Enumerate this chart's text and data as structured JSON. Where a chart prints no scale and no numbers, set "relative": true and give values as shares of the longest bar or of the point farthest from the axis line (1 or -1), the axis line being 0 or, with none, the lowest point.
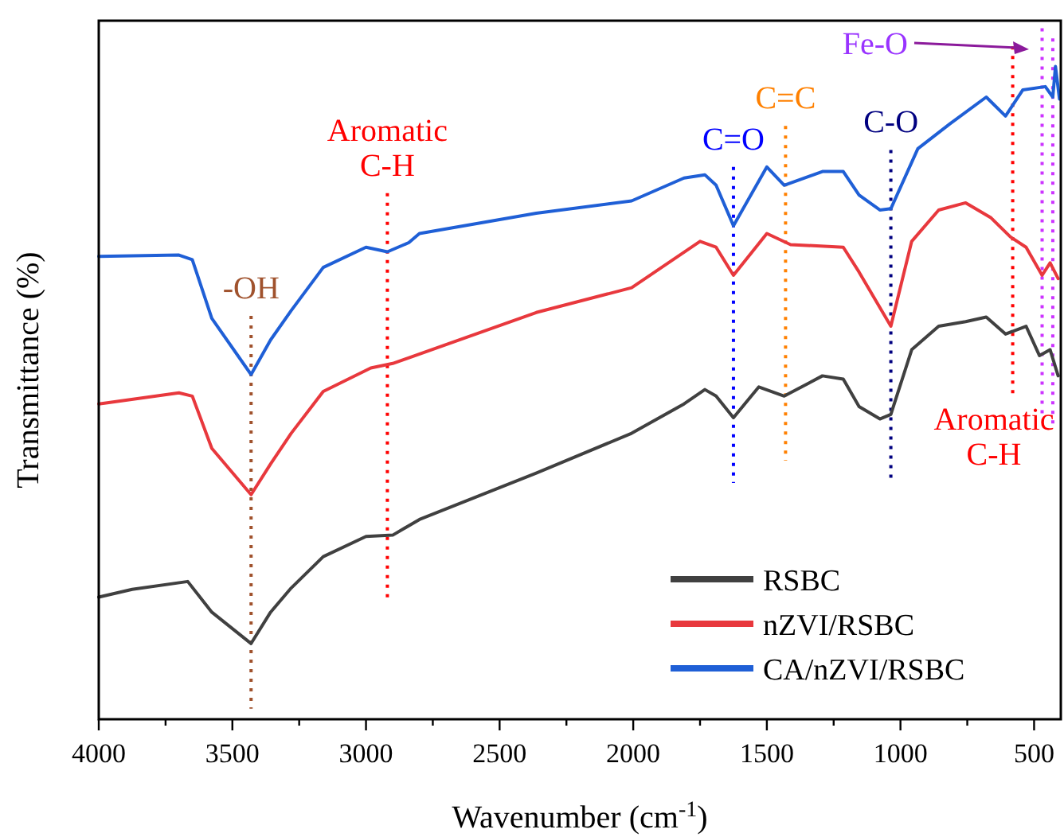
{
  "chart_data": {
    "type": "line",
    "relative": true,
    "xlabel": "Wavenumber (cm$^{-1}$)",
    "ylabel": "Transmittance (%)",
    "xlim": [
      4000,
      400
    ],
    "xticks": [
      4000,
      {
        "value": 3750,
        "label": null
      },
      3500,
      {
        "value": 3250,
        "label": null
      },
      3000,
      {
        "value": 2750,
        "label": null
      },
      2500,
      {
        "value": 2250,
        "label": null
      },
      2000,
      {
        "value": 1750,
        "label": null
      },
      1500,
      {
        "value": 1250,
        "label": null
      },
      1000,
      {
        "value": 750,
        "label": null
      },
      500
    ],
    "legend": "bottom right",
    "line_style": "solid",
    "series": [
      {
        "name": "RSBC",
        "color": "#404040",
        "x": [
          4000,
          3875,
          3667,
          3577,
          3430,
          3357,
          3280,
          3160,
          3000,
          2900,
          2800,
          2363,
          2006,
          1810,
          1732,
          1690,
          1625,
          1530,
          1435,
          1292,
          1214,
          1155,
          1077,
          1036,
          958,
          857,
          756,
          679,
          607,
          530,
          480,
          440,
          410
        ],
        "values": [
          0.187,
          0.199,
          0.211,
          0.164,
          0.116,
          0.164,
          0.201,
          0.249,
          0.28,
          0.282,
          0.306,
          0.377,
          0.438,
          0.483,
          0.505,
          0.495,
          0.462,
          0.509,
          0.495,
          0.526,
          0.521,
          0.479,
          0.46,
          0.467,
          0.566,
          0.602,
          0.609,
          0.616,
          0.59,
          0.602,
          0.557,
          0.566,
          0.526
        ]
      },
      {
        "name": "nZVI/RSBC",
        "color": "#e8383d",
        "x": [
          4000,
          3700,
          3650,
          3577,
          3430,
          3357,
          3280,
          3160,
          2982,
          2900,
          2363,
          2006,
          1750,
          1690,
          1625,
          1500,
          1411,
          1214,
          1155,
          1036,
          958,
          857,
          756,
          661,
          589,
          530,
          470,
          440,
          410
        ],
        "values": [
          0.483,
          0.5,
          0.495,
          0.415,
          0.344,
          0.391,
          0.438,
          0.502,
          0.538,
          0.545,
          0.623,
          0.661,
          0.732,
          0.723,
          0.68,
          0.744,
          0.727,
          0.723,
          0.685,
          0.602,
          0.732,
          0.78,
          0.791,
          0.768,
          0.739,
          0.723,
          0.68,
          0.699,
          0.675
        ]
      },
      {
        "name": "CA/nZVI/RSBC",
        "color": "#1f5fd6",
        "x": [
          4000,
          3700,
          3650,
          3577,
          3430,
          3357,
          3280,
          3160,
          3000,
          2920,
          2840,
          2800,
          2363,
          2006,
          1810,
          1732,
          1690,
          1625,
          1500,
          1435,
          1292,
          1214,
          1155,
          1077,
          1036,
          935,
          815,
          679,
          607,
          542,
          458,
          430,
          420,
          405
        ],
        "values": [
          0.709,
          0.711,
          0.704,
          0.614,
          0.528,
          0.581,
          0.626,
          0.692,
          0.723,
          0.716,
          0.73,
          0.744,
          0.775,
          0.794,
          0.829,
          0.834,
          0.818,
          0.756,
          0.846,
          0.818,
          0.839,
          0.839,
          0.803,
          0.78,
          0.782,
          0.874,
          0.912,
          0.953,
          0.924,
          0.964,
          0.969,
          0.953,
          1.0,
          0.95
        ]
      }
    ],
    "ref_lines": [
      {
        "axis": "x",
        "value": 3430,
        "label": "-OH",
        "color": "#a0522d",
        "line_style": "dotted"
      },
      {
        "axis": "x",
        "value": 2920,
        "label": "Aromatic C-H",
        "color": "#ff0000",
        "line_style": "dotted"
      },
      {
        "axis": "x",
        "value": 1625,
        "label": "C=O",
        "color": "#0000ff",
        "line_style": "dotted"
      },
      {
        "axis": "x",
        "value": 1430,
        "label": "C=C",
        "color": "#ff8000",
        "line_style": "dotted"
      },
      {
        "axis": "x",
        "value": 1036,
        "label": "C-O",
        "color": "#000080",
        "line_style": "dotted"
      },
      {
        "axis": "x",
        "value": 580,
        "label": "Aromatic C-H",
        "color": "#ff0000",
        "line_style": "dotted"
      },
      {
        "axis": "x",
        "value": 470,
        "label": null,
        "color": "#cc33ff",
        "line_style": "dotted"
      },
      {
        "axis": "x",
        "value": 430,
        "label": null,
        "color": "#cc33ff",
        "line_style": "dotted"
      }
    ],
    "annotations": [
      "Fe-O"
    ]
  }
}
